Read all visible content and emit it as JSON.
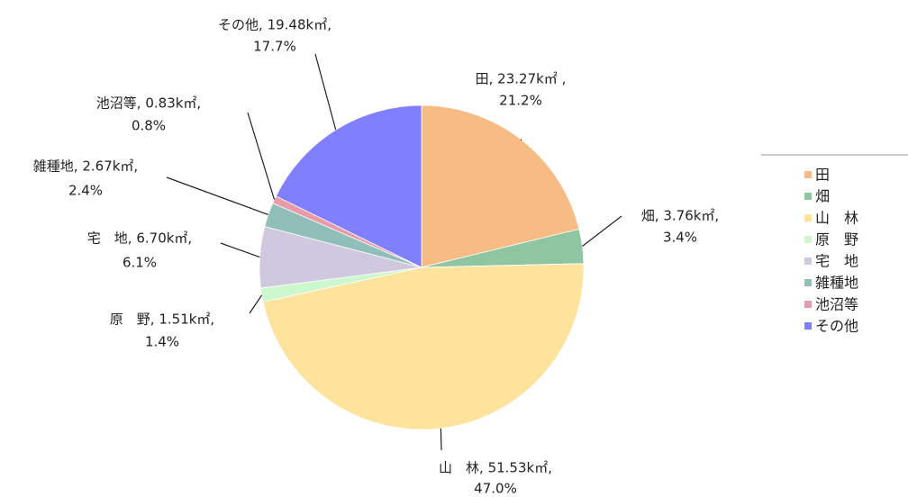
{
  "chart_data": {
    "type": "pie",
    "categories": [
      "田",
      "畑",
      "山　林",
      "原　野",
      "宅　地",
      "雑種地",
      "池沼等",
      "その他"
    ],
    "values": [
      23.27,
      3.76,
      51.53,
      1.51,
      6.7,
      2.67,
      0.83,
      19.48
    ],
    "value_labels": [
      "田, 23.27k㎡ ,",
      "畑, 3.76k㎡,",
      "山　林, 51.53k㎡,",
      "原　野, 1.51k㎡,",
      "宅　地, 6.70k㎡,",
      "雑種地, 2.67k㎡,",
      "池沼等, 0.83k㎡,",
      "その他, 19.48k㎡,"
    ],
    "percentages": [
      21.2,
      3.4,
      47.0,
      1.4,
      6.1,
      2.4,
      0.8,
      17.7
    ],
    "percentage_labels": [
      "21.2%",
      "3.4%",
      "47.0%",
      "1.4%",
      "6.1%",
      "2.4%",
      "0.8%",
      "17.7%"
    ],
    "colors": [
      "#f7bb84",
      "#8fc5a0",
      "#fde39b",
      "#cdf7cd",
      "#d0c8de",
      "#8fbfb8",
      "#e89aa8",
      "#8080ff"
    ],
    "legend": "right"
  }
}
